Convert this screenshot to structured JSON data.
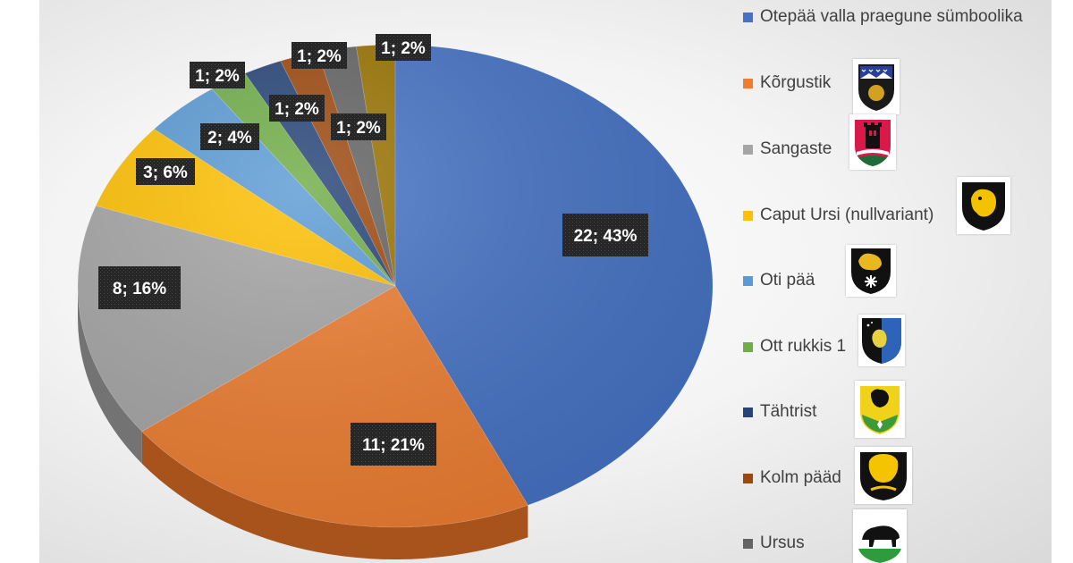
{
  "chart_data": {
    "type": "pie",
    "title": "",
    "slices": [
      {
        "name": "Otepää valla praegune sümboolika",
        "value": 22,
        "label": "22; 43%",
        "color": "#4472C4",
        "side": "#2B4F8F"
      },
      {
        "name": "Kõrgustik",
        "value": 11,
        "label": "11; 21%",
        "color": "#ED7D31",
        "side": "#A8531B"
      },
      {
        "name": "Sangaste",
        "value": 8,
        "label": "8; 16%",
        "color": "#A5A5A5",
        "side": "#737373"
      },
      {
        "name": "Caput Ursi (nullvariant)",
        "value": 3,
        "label": "3; 6%",
        "color": "#FFC000",
        "side": "#B38600"
      },
      {
        "name": "Oti pää",
        "value": 2,
        "label": "2; 4%",
        "color": "#5B9BD5",
        "side": "#3A6FA0"
      },
      {
        "name": "Ott rukkis 1",
        "value": 1,
        "label": "1; 2%",
        "color": "#70AD47",
        "side": "#4D7A30"
      },
      {
        "name": "Tähtrist",
        "value": 1,
        "label": "1; 2%",
        "color": "#264478",
        "side": "#15284A"
      },
      {
        "name": "Kolm pääd",
        "value": 1,
        "label": "1; 2%",
        "color": "#9E480E",
        "side": "#6A2F08"
      },
      {
        "name": "Ursus",
        "value": 1,
        "label": "1; 2%",
        "color": "#636363",
        "side": "#3D3D3D"
      },
      {
        "name": "",
        "value": 1,
        "label": "1; 2%",
        "color": "#997300",
        "side": "#664C00"
      }
    ],
    "legend_position": "right"
  },
  "shields": [
    {
      "name": "Kõrgustik",
      "icon": "coat-of-arms-icon"
    },
    {
      "name": "Sangaste",
      "icon": "coat-of-arms-icon"
    },
    {
      "name": "Caput Ursi (nullvariant)",
      "icon": "coat-of-arms-icon"
    },
    {
      "name": "Oti pää",
      "icon": "coat-of-arms-icon"
    },
    {
      "name": "Ott rukkis 1",
      "icon": "coat-of-arms-icon"
    },
    {
      "name": "Tähtrist",
      "icon": "coat-of-arms-icon"
    },
    {
      "name": "Kolm pääd",
      "icon": "coat-of-arms-icon"
    },
    {
      "name": "Ursus",
      "icon": "coat-of-arms-icon"
    }
  ]
}
